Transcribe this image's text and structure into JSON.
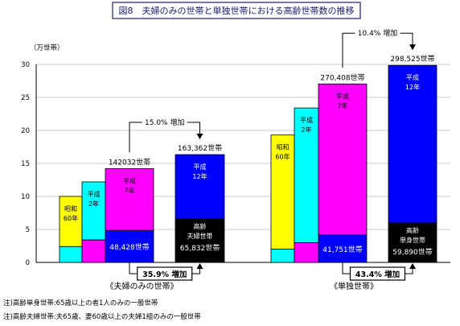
{
  "chart_data": {
    "type": "bar",
    "title": "図8　夫婦のみの世帯と単独世帯における高齢世帯数の推移",
    "ylabel": "（万世帯）",
    "ylim": [
      0,
      30
    ],
    "yticks": [
      0,
      5,
      10,
      15,
      20,
      25,
      30
    ],
    "grid": true,
    "groups": [
      {
        "label": "《夫婦のみの世帯》",
        "bars": [
          {
            "era": "昭和",
            "year": "60年",
            "total": 10.0,
            "elderly": 2.4,
            "color": "#ffff00",
            "low_color": "#00ffff",
            "label": ""
          },
          {
            "era": "平成",
            "year": "2年",
            "total": 12.2,
            "elderly": 3.4,
            "color": "#00ffff",
            "low_color": "#ff00ff",
            "label": ""
          },
          {
            "era": "平成",
            "year": "7年",
            "total": 14.2032,
            "elderly": 4.8428,
            "color": "#ff00ff",
            "low_color": "#0000ff",
            "label": "142032世帯",
            "elderly_label": "48,428世帯"
          },
          {
            "era": "平成",
            "year": "12年",
            "total": 16.3362,
            "elderly": 6.5832,
            "color": "#0000ff",
            "low_color": "#000000",
            "label": "163,362世帯",
            "elderly_label": "65,832世帯",
            "elderly_title": "高齢\n夫婦世帯"
          }
        ],
        "total_change": "15.0% 増加",
        "elderly_change": "35.9% 増加"
      },
      {
        "label": "《単独世帯》",
        "bars": [
          {
            "era": "昭和",
            "year": "60年",
            "total": 19.3,
            "elderly": 2.0,
            "color": "#ffff00",
            "low_color": "#00ffff",
            "label": ""
          },
          {
            "era": "平成",
            "year": "2年",
            "total": 23.4,
            "elderly": 3.0,
            "color": "#00ffff",
            "low_color": "#ff00ff",
            "label": ""
          },
          {
            "era": "平成",
            "year": "7年",
            "total": 27.0408,
            "elderly": 4.1751,
            "color": "#ff00ff",
            "low_color": "#0000ff",
            "label": "270,408世帯",
            "elderly_label": "41,751世帯"
          },
          {
            "era": "平成",
            "year": "12年",
            "total": 29.8525,
            "elderly": 5.989,
            "color": "#0000ff",
            "low_color": "#000000",
            "label": "298,525世帯",
            "elderly_label": "59,890世帯",
            "elderly_title": "高齢\n単身世帯"
          }
        ],
        "total_change": "10.4% 増加",
        "elderly_change": "43.4% 増加"
      }
    ]
  },
  "notes": [
    "注)高齢単身世帯:65歳以上の者1人のみの一般世帯",
    "注)高齢夫婦世帯:夫65歳、妻60歳以上の夫婦1組のみの一般世帯"
  ]
}
